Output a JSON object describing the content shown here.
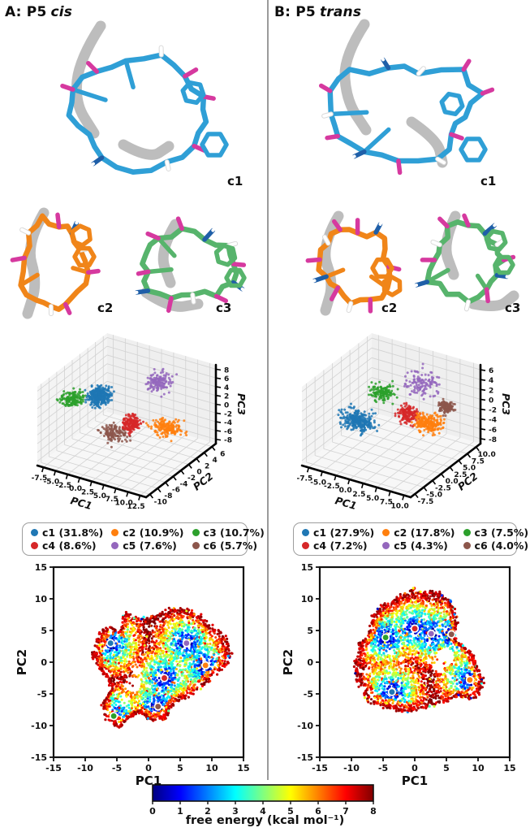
{
  "panels": [
    {
      "id": "A",
      "title_prefix": "A: P5",
      "title_variant": "cis",
      "molecules": [
        {
          "label": "c1"
        },
        {
          "label": "c2"
        },
        {
          "label": "c3"
        }
      ],
      "legend": [
        {
          "name": "c1",
          "label": "c1 (31.8%)",
          "color": "#1f77b4"
        },
        {
          "name": "c2",
          "label": "c2 (10.9%)",
          "color": "#ff7f0e"
        },
        {
          "name": "c3",
          "label": "c3 (10.7%)",
          "color": "#2ca02c"
        },
        {
          "name": "c4",
          "label": "c4 (8.6%)",
          "color": "#d62728"
        },
        {
          "name": "c5",
          "label": "c5 (7.6%)",
          "color": "#9467bd"
        },
        {
          "name": "c6",
          "label": "c6 (5.7%)",
          "color": "#8c564b"
        }
      ]
    },
    {
      "id": "B",
      "title_prefix": "B: P5",
      "title_variant": "trans",
      "molecules": [
        {
          "label": "c1"
        },
        {
          "label": "c2"
        },
        {
          "label": "c3"
        }
      ],
      "legend": [
        {
          "name": "c1",
          "label": "c1 (27.9%)",
          "color": "#1f77b4"
        },
        {
          "name": "c2",
          "label": "c2 (17.8%)",
          "color": "#ff7f0e"
        },
        {
          "name": "c3",
          "label": "c3 (7.5%)",
          "color": "#2ca02c"
        },
        {
          "name": "c4",
          "label": "c4 (7.2%)",
          "color": "#d62728"
        },
        {
          "name": "c5",
          "label": "c5 (4.3%)",
          "color": "#9467bd"
        },
        {
          "name": "c6",
          "label": "c6 (4.0%)",
          "color": "#8c564b"
        }
      ]
    }
  ],
  "molecule_colors": {
    "carbon_c1": "#2f9fd6",
    "carbon_c2": "#f08519",
    "carbon_c3": "#57b46c",
    "oxygen": "#d6399f",
    "nitrogen": "#1f5fa8",
    "hydrogen": "#ffffff",
    "ribbon": "#b7b7b7"
  },
  "cluster_colors": {
    "c1": "#1f77b4",
    "c2": "#ff7f0e",
    "c3": "#2ca02c",
    "c4": "#d62728",
    "c5": "#9467bd",
    "c6": "#8c564b"
  },
  "colorbar": {
    "min": 0,
    "max": 8,
    "ticks": [
      "0",
      "1",
      "2",
      "3",
      "4",
      "5",
      "6",
      "7",
      "8"
    ],
    "label": "free energy (kcal mol⁻¹)",
    "colormap": "jet"
  },
  "chart_data": [
    {
      "id": "pca3d-cis",
      "panel": "A",
      "type": "scatter3d",
      "grid": true,
      "xlabel": "PC1",
      "ylabel": "PC2",
      "zlabel": "PC3",
      "xticks": [
        -7.5,
        -5.0,
        -2.5,
        0.0,
        2.5,
        5.0,
        7.5,
        10.0,
        12.5
      ],
      "yticks": [
        -10,
        -8,
        -6,
        -4,
        -2,
        0,
        2,
        4,
        6
      ],
      "zticks": [
        -8,
        -6,
        -4,
        -2,
        0,
        2,
        4,
        6,
        8
      ],
      "clusters": [
        {
          "name": "c3",
          "color": "#2ca02c",
          "fraction": 10.7,
          "center": [
            -6.5,
            -4.5,
            2.5
          ],
          "sigma": [
            1.9,
            1.5,
            1.2
          ]
        },
        {
          "name": "c1",
          "color": "#1f77b4",
          "fraction": 31.8,
          "center": [
            -1.5,
            -4.0,
            4.5
          ],
          "sigma": [
            1.7,
            1.5,
            1.5
          ]
        },
        {
          "name": "c5",
          "color": "#9467bd",
          "fraction": 7.6,
          "center": [
            4.0,
            4.5,
            3.6
          ],
          "sigma": [
            1.9,
            1.6,
            1.5
          ]
        },
        {
          "name": "c6",
          "color": "#8c564b",
          "fraction": 5.7,
          "center": [
            1.0,
            -3.5,
            -3.5
          ],
          "sigma": [
            2.3,
            1.6,
            1.2
          ]
        },
        {
          "name": "c4",
          "color": "#d62728",
          "fraction": 8.6,
          "center": [
            3.0,
            -1.5,
            -2.0
          ],
          "sigma": [
            1.4,
            1.3,
            1.3
          ]
        },
        {
          "name": "c2",
          "color": "#ff7f0e",
          "fraction": 10.9,
          "center": [
            8.0,
            1.5,
            -3.5
          ],
          "sigma": [
            2.4,
            1.7,
            1.3
          ]
        }
      ]
    },
    {
      "id": "pca3d-trans",
      "panel": "B",
      "type": "scatter3d",
      "grid": true,
      "xlabel": "PC1",
      "ylabel": "PC2",
      "zlabel": "PC3",
      "xticks": [
        -7.5,
        -5.0,
        -2.5,
        0.0,
        2.5,
        5.0,
        7.5,
        10.0
      ],
      "yticks": [
        -7.5,
        -5.0,
        -2.5,
        0.0,
        2.5,
        5.0,
        7.5,
        10.0
      ],
      "zticks": [
        -8,
        -6,
        -4,
        -2,
        0,
        2,
        4,
        6
      ],
      "clusters": [
        {
          "name": "c1",
          "color": "#1f77b4",
          "fraction": 27.9,
          "center": [
            -4.0,
            0.0,
            -3.0
          ],
          "sigma": [
            2.6,
            1.7,
            1.4
          ]
        },
        {
          "name": "c3",
          "color": "#2ca02c",
          "fraction": 7.5,
          "center": [
            -1.0,
            2.4,
            2.3
          ],
          "sigma": [
            1.7,
            1.4,
            1.4
          ]
        },
        {
          "name": "c5",
          "color": "#9467bd",
          "fraction": 4.3,
          "center": [
            4.0,
            6.0,
            3.5
          ],
          "sigma": [
            2.3,
            2.0,
            1.8
          ]
        },
        {
          "name": "c6",
          "color": "#8c564b",
          "fraction": 4.0,
          "center": [
            6.0,
            9.5,
            -2.3
          ],
          "sigma": [
            1.1,
            1.0,
            1.0
          ]
        },
        {
          "name": "c4",
          "color": "#d62728",
          "fraction": 7.2,
          "center": [
            2.5,
            4.0,
            -1.8
          ],
          "sigma": [
            1.5,
            1.4,
            1.4
          ]
        },
        {
          "name": "c2",
          "color": "#ff7f0e",
          "fraction": 17.8,
          "center": [
            5.5,
            5.3,
            -3.5
          ],
          "sigma": [
            2.0,
            1.6,
            1.3
          ]
        }
      ]
    },
    {
      "id": "fes-cis",
      "panel": "A",
      "type": "scatter-density",
      "xlabel": "PC1",
      "ylabel": "PC2",
      "xlim": [
        -15,
        15
      ],
      "ylim": [
        -15,
        15
      ],
      "xticks": [
        -15,
        -10,
        -5,
        0,
        5,
        10,
        15
      ],
      "yticks": [
        -15,
        -10,
        -5,
        0,
        5,
        10,
        15
      ],
      "color_label": "free energy (kcal mol⁻¹)",
      "crange": [
        0,
        8
      ],
      "minima": [
        {
          "name": "c1",
          "color": "#1f77b4",
          "pos": [
            -6.0,
            3.0
          ]
        },
        {
          "name": "c5",
          "color": "#9467bd",
          "pos": [
            6.0,
            3.0
          ]
        },
        {
          "name": "c2",
          "color": "#ff7f0e",
          "pos": [
            9.0,
            -0.5
          ]
        },
        {
          "name": "c4",
          "color": "#d62728",
          "pos": [
            2.5,
            -2.5
          ]
        },
        {
          "name": "c6",
          "color": "#8c564b",
          "pos": [
            1.5,
            -7.0
          ]
        },
        {
          "name": "c3",
          "color": "#2ca02c",
          "pos": [
            -5.5,
            -8.5
          ]
        }
      ],
      "boundary": [
        [
          -8.5,
          1.5
        ],
        [
          -7.5,
          4.5
        ],
        [
          -6,
          5.5
        ],
        [
          -4.5,
          4.5
        ],
        [
          -3.5,
          7.5
        ],
        [
          -1.5,
          6.5
        ],
        [
          0.5,
          7
        ],
        [
          3,
          8
        ],
        [
          5.5,
          8
        ],
        [
          8,
          7
        ],
        [
          9.5,
          5.5
        ],
        [
          11.5,
          4
        ],
        [
          12.5,
          1.5
        ],
        [
          12,
          -0.5
        ],
        [
          10,
          -2
        ],
        [
          8.5,
          -3.5
        ],
        [
          6.5,
          -5
        ],
        [
          4,
          -6
        ],
        [
          2.5,
          -8.5
        ],
        [
          0.5,
          -9
        ],
        [
          -1.5,
          -7.5
        ],
        [
          -3,
          -8.5
        ],
        [
          -4.5,
          -10
        ],
        [
          -6.5,
          -9
        ],
        [
          -7,
          -6.5
        ],
        [
          -5.5,
          -4
        ],
        [
          -6.5,
          -2
        ],
        [
          -8,
          -0.5
        ]
      ],
      "holes": [
        [
          -2.5,
          -3.5,
          1.3
        ],
        [
          -1.8,
          -1.2,
          0.8
        ],
        [
          -3.6,
          -6,
          0.9
        ]
      ]
    },
    {
      "id": "fes-trans",
      "panel": "B",
      "type": "scatter-density",
      "xlabel": "PC1",
      "ylabel": "PC2",
      "xlim": [
        -15,
        15
      ],
      "ylim": [
        -15,
        15
      ],
      "xticks": [
        -15,
        -10,
        -5,
        0,
        5,
        10,
        15
      ],
      "yticks": [
        -15,
        -10,
        -5,
        0,
        5,
        10,
        15
      ],
      "color_label": "free energy (kcal mol⁻¹)",
      "crange": [
        0,
        8
      ],
      "minima": [
        {
          "name": "c3",
          "color": "#2ca02c",
          "pos": [
            -4.6,
            3.9
          ]
        },
        {
          "name": "c4",
          "color": "#d62728",
          "pos": [
            0.0,
            5.3
          ]
        },
        {
          "name": "c5",
          "color": "#9467bd",
          "pos": [
            2.6,
            4.5
          ]
        },
        {
          "name": "c6",
          "color": "#8c564b",
          "pos": [
            5.8,
            4.4
          ]
        },
        {
          "name": "c2",
          "color": "#ff7f0e",
          "pos": [
            8.7,
            -2.8
          ]
        },
        {
          "name": "c1",
          "color": "#1f77b4",
          "pos": [
            -3.6,
            -4.7
          ]
        }
      ],
      "boundary": [
        [
          -9,
          0
        ],
        [
          -8.5,
          2.5
        ],
        [
          -7.5,
          4
        ],
        [
          -6.5,
          7
        ],
        [
          -5,
          8.5
        ],
        [
          -3,
          9.5
        ],
        [
          -1.5,
          10.5
        ],
        [
          0,
          11.5
        ],
        [
          1.5,
          10.5
        ],
        [
          3,
          11
        ],
        [
          4.5,
          10
        ],
        [
          5.5,
          9.5
        ],
        [
          6,
          8
        ],
        [
          6.5,
          6
        ],
        [
          6,
          4
        ],
        [
          7.5,
          2.5
        ],
        [
          9,
          1
        ],
        [
          9.5,
          -0.5
        ],
        [
          10.5,
          -2.5
        ],
        [
          10,
          -4.5
        ],
        [
          8.5,
          -5.5
        ],
        [
          6.5,
          -5
        ],
        [
          5,
          -6
        ],
        [
          3,
          -6.5
        ],
        [
          1,
          -7
        ],
        [
          -1,
          -7.5
        ],
        [
          -3.5,
          -7
        ],
        [
          -6,
          -6.5
        ],
        [
          -7.5,
          -5.5
        ],
        [
          -8.5,
          -3
        ],
        [
          -9,
          -1.5
        ]
      ],
      "holes": [
        [
          4.8,
          0.8,
          1.5
        ],
        [
          3.6,
          -0.8,
          0.9
        ]
      ]
    }
  ]
}
